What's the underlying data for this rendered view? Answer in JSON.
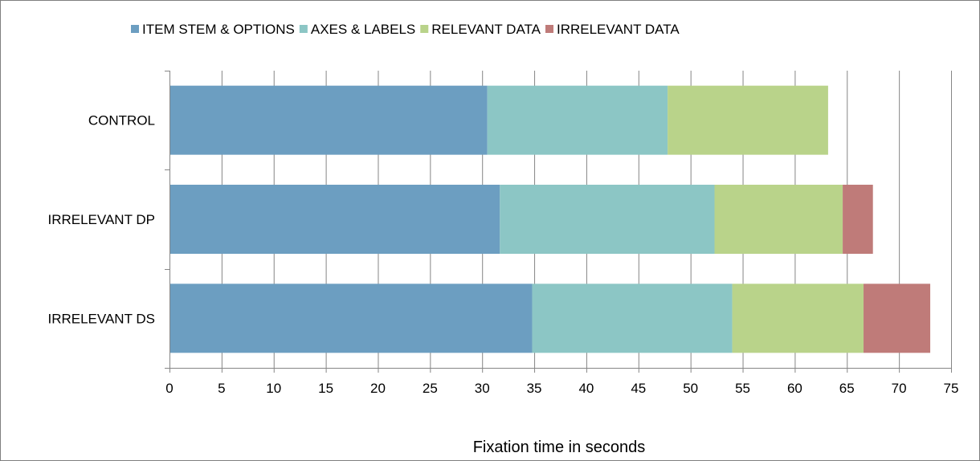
{
  "chart_data": {
    "type": "bar",
    "orientation": "horizontal",
    "stacked": true,
    "title": "",
    "xlabel": "Fixation time in seconds",
    "ylabel": "",
    "xlim": [
      0,
      75
    ],
    "x_ticks": [
      0,
      5,
      10,
      15,
      20,
      25,
      30,
      35,
      40,
      45,
      50,
      55,
      60,
      65,
      70,
      75
    ],
    "categories": [
      "CONTROL",
      "IRRELEVANT DP",
      "IRRELEVANT DS"
    ],
    "series": [
      {
        "name": "ITEM STEM & OPTIONS",
        "color": "#6c9ec1",
        "values": [
          30.5,
          31.7,
          34.8
        ]
      },
      {
        "name": "AXES & LABELS",
        "color": "#8cc6c5",
        "values": [
          17.3,
          20.6,
          19.2
        ]
      },
      {
        "name": "RELEVANT DATA",
        "color": "#b9d38a",
        "values": [
          15.4,
          12.3,
          12.6
        ]
      },
      {
        "name": "IRRELEVANT DATA",
        "color": "#bf7b79",
        "values": [
          0,
          2.9,
          6.4
        ]
      }
    ],
    "grid": true,
    "grid_axis": "x",
    "legend_position": "top"
  }
}
